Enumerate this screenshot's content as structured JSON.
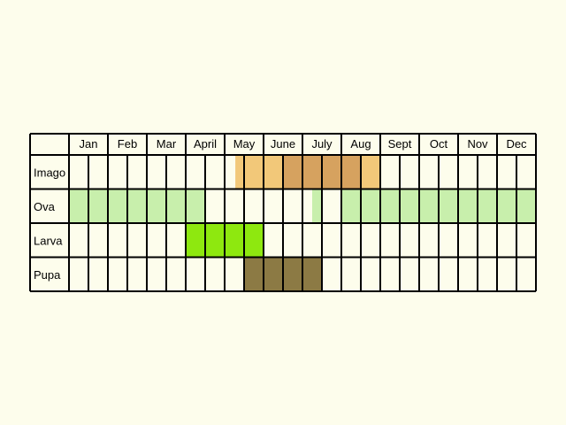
{
  "chart_data": {
    "type": "table",
    "title": "",
    "months": [
      "Jan",
      "Feb",
      "Mar",
      "April",
      "May",
      "June",
      "July",
      "Aug",
      "Sept",
      "Oct",
      "Nov",
      "Dec"
    ],
    "periods_per_month": 2,
    "stages": [
      {
        "name": "Imago",
        "cells": [
          0,
          0,
          0,
          0,
          0,
          0,
          0,
          0,
          0,
          1,
          1,
          2,
          2,
          2,
          2,
          1,
          0,
          0,
          0,
          0,
          0,
          0,
          0,
          0
        ],
        "partial": [
          {
            "index": 8,
            "from": 0.55,
            "level": 1
          }
        ]
      },
      {
        "name": "Ova",
        "cells": [
          1,
          1,
          1,
          1,
          1,
          1,
          1,
          0,
          0,
          0,
          0,
          0,
          0,
          0,
          1,
          1,
          1,
          1,
          1,
          1,
          1,
          1,
          1,
          1
        ],
        "partial": [
          {
            "index": 12,
            "from": 0.5,
            "level": 1
          }
        ]
      },
      {
        "name": "Larva",
        "cells": [
          0,
          0,
          0,
          0,
          0,
          0,
          1,
          1,
          1,
          1,
          0,
          0,
          0,
          0,
          0,
          0,
          0,
          0,
          0,
          0,
          0,
          0,
          0,
          0
        ],
        "partial": []
      },
      {
        "name": "Pupa",
        "cells": [
          0,
          0,
          0,
          0,
          0,
          0,
          0,
          0,
          0,
          1,
          1,
          1,
          1,
          0,
          0,
          0,
          0,
          0,
          0,
          0,
          0,
          0,
          0,
          0
        ],
        "partial": []
      }
    ],
    "colors": {
      "background": "#fdfdec",
      "Imago": [
        "#fdfdec",
        "#f2c879",
        "#d6a25f"
      ],
      "Ova": [
        "#fdfdec",
        "#c8efac"
      ],
      "Larva": [
        "#fdfdec",
        "#8ee80f"
      ],
      "Pupa": [
        "#fdfdec",
        "#8c7a44"
      ]
    }
  }
}
